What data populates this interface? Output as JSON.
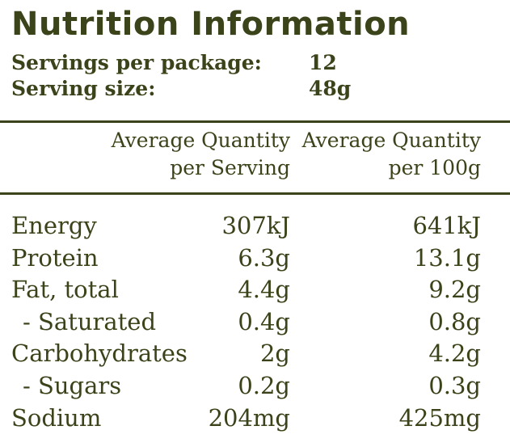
{
  "title": "Nutrition Information",
  "servings_per_package": {
    "label": "Servings per package:",
    "value": "12"
  },
  "serving_size": {
    "label": "Serving size:",
    "value": "48g"
  },
  "columns": {
    "per_serving": {
      "line1": "Average Quantity",
      "line2": "per Serving"
    },
    "per_100g": {
      "line1": "Average Quantity",
      "line2": "per 100g"
    }
  },
  "rows": [
    {
      "name": "Energy",
      "per_serving": "307kJ",
      "per_100g": "641kJ"
    },
    {
      "name": "Protein",
      "per_serving": "6.3g",
      "per_100g": "13.1g"
    },
    {
      "name": "Fat, total",
      "per_serving": "4.4g",
      "per_100g": "9.2g"
    },
    {
      "name": "- Saturated",
      "per_serving": "0.4g",
      "per_100g": "0.8g"
    },
    {
      "name": "Carbohydrates",
      "per_serving": "2g",
      "per_100g": "4.2g"
    },
    {
      "name": "- Sugars",
      "per_serving": "0.2g",
      "per_100g": "0.3g"
    },
    {
      "name": "Sodium",
      "per_serving": "204mg",
      "per_100g": "425mg"
    }
  ],
  "colors": {
    "text": "#3a4319",
    "background": "#ffffff"
  }
}
